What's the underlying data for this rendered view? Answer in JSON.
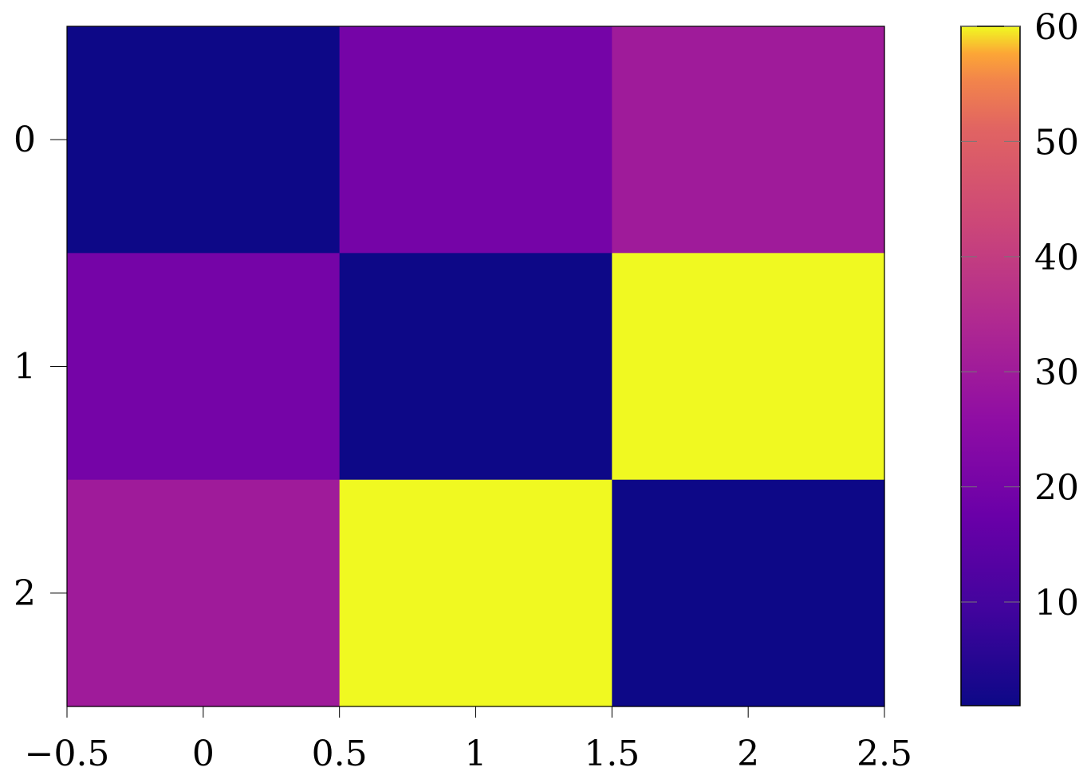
{
  "chart_data": {
    "type": "heatmap",
    "title": "",
    "xlabel": "",
    "ylabel": "",
    "x_centers": [
      0,
      1,
      2
    ],
    "y_centers": [
      0,
      1,
      2
    ],
    "xlim": [
      -0.5,
      2.5
    ],
    "ylim": [
      -0.5,
      2.5
    ],
    "y_inverted": true,
    "x_ticks": [
      -0.5,
      0,
      0.5,
      1,
      1.5,
      2,
      2.5
    ],
    "x_tick_labels": [
      "−0.5",
      "0",
      "0.5",
      "1",
      "1.5",
      "2",
      "2.5"
    ],
    "y_ticks": [
      0,
      1,
      2
    ],
    "y_tick_labels": [
      "0",
      "1",
      "2"
    ],
    "values": [
      [
        1,
        20,
        30
      ],
      [
        20,
        1,
        60
      ],
      [
        30,
        60,
        1
      ]
    ],
    "colormap": "plasma",
    "colorbar": {
      "min": 1,
      "max": 60,
      "ticks": [
        10,
        20,
        30,
        40,
        50,
        60
      ],
      "tick_labels": [
        "10",
        "20",
        "30",
        "40",
        "50",
        "60"
      ],
      "placement": "right"
    },
    "grid": false
  }
}
